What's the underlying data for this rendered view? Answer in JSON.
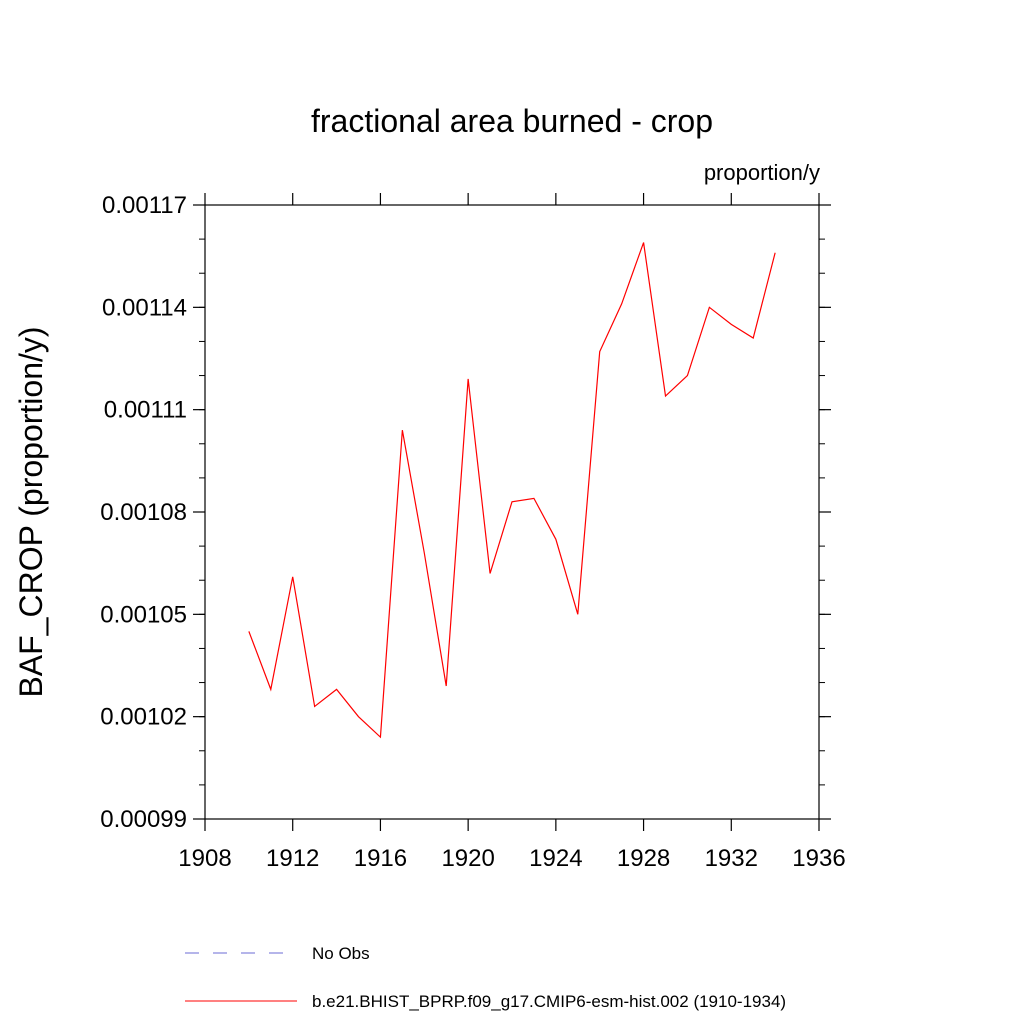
{
  "chart_data": {
    "type": "line",
    "title": "fractional area burned - crop",
    "units_label": "proportion/y",
    "xlabel": "",
    "ylabel": "BAF_CROP  (proportion/y)",
    "xlim": [
      1908,
      1936
    ],
    "ylim": [
      0.00099,
      0.00117
    ],
    "x_ticks": [
      "1908",
      "1912",
      "1916",
      "1920",
      "1924",
      "1928",
      "1932",
      "1936"
    ],
    "y_ticks": [
      "0.00099",
      "0.00102",
      "0.00105",
      "0.00108",
      "0.00111",
      "0.00114",
      "0.00117"
    ],
    "grid": false,
    "legend_position": "bottom",
    "legend": [
      {
        "label": "No Obs",
        "color": "#6b6bd6",
        "style": "dashed"
      },
      {
        "label": "b.e21.BHIST_BPRP.f09_g17.CMIP6-esm-hist.002 (1910-1934)",
        "color": "#ff0000",
        "style": "solid"
      }
    ],
    "series": [
      {
        "name": "b.e21.BHIST_BPRP.f09_g17.CMIP6-esm-hist.002 (1910-1934)",
        "color": "#ff0000",
        "x": [
          1910,
          1911,
          1912,
          1913,
          1914,
          1915,
          1916,
          1917,
          1918,
          1919,
          1920,
          1921,
          1922,
          1923,
          1924,
          1925,
          1926,
          1927,
          1928,
          1929,
          1930,
          1931,
          1932,
          1933,
          1934
        ],
        "values": [
          0.001045,
          0.001028,
          0.001061,
          0.001023,
          0.001028,
          0.00102,
          0.001014,
          0.001104,
          0.001068,
          0.001029,
          0.001119,
          0.001062,
          0.001083,
          0.001084,
          0.001072,
          0.00105,
          0.001127,
          0.001141,
          0.001159,
          0.001114,
          0.00112,
          0.00114,
          0.001135,
          0.001131,
          0.001156
        ]
      }
    ]
  }
}
